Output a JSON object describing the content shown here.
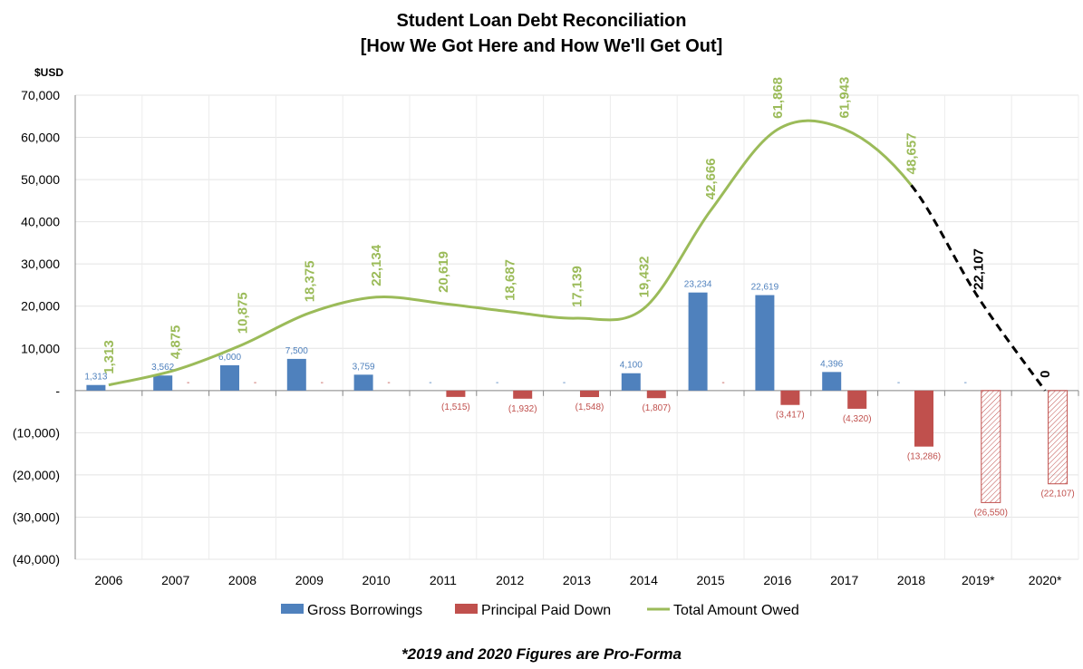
{
  "chart_data": {
    "type": "bar",
    "title": [
      "Student Loan Debt Reconciliation",
      "[How We Got Here and How We'll Get Out]"
    ],
    "ylabel": "$USD",
    "ylim": [
      -40000,
      70000
    ],
    "yticks": [
      70000,
      60000,
      50000,
      40000,
      30000,
      20000,
      10000,
      0,
      -10000,
      -20000,
      -30000,
      -40000
    ],
    "ytick_labels": [
      "70,000",
      "60,000",
      "50,000",
      "40,000",
      "30,000",
      "20,000",
      "10,000",
      "-",
      "(10,000)",
      "(20,000)",
      "(30,000)",
      "(40,000)"
    ],
    "categories": [
      "2006",
      "2007",
      "2008",
      "2009",
      "2010",
      "2011",
      "2012",
      "2013",
      "2014",
      "2015",
      "2016",
      "2017",
      "2018",
      "2019*",
      "2020*"
    ],
    "grid": true,
    "series": [
      {
        "name": "Gross Borrowings",
        "type": "bar",
        "color": "#4f81bd",
        "values": [
          1313,
          3562,
          6000,
          7500,
          3759,
          0,
          0,
          0,
          4100,
          23234,
          22619,
          4396,
          0,
          0,
          null
        ],
        "labels": [
          "1,313",
          "3,562",
          "6,000",
          "7,500",
          "3,759",
          "-",
          "-",
          "-",
          "4,100",
          "23,234",
          "22,619",
          "4,396",
          "-",
          "-",
          ""
        ]
      },
      {
        "name": "Principal Paid Down",
        "type": "bar",
        "color": "#c0504d",
        "values": [
          0,
          0,
          0,
          0,
          0,
          -1515,
          -1932,
          -1548,
          -1807,
          0,
          -3417,
          -4320,
          -13286,
          -26550,
          -22107
        ],
        "labels": [
          "-",
          "-",
          "-",
          "-",
          "-",
          "(1,515)",
          "(1,932)",
          "(1,548)",
          "(1,807)",
          "-",
          "(3,417)",
          "(4,320)",
          "(13,286)",
          "(26,550)",
          "(22,107)"
        ],
        "pro_forma_from_index": 13
      },
      {
        "name": "Total Amount Owed",
        "type": "line",
        "color": "#9bbb59",
        "values": [
          1313,
          4875,
          10875,
          18375,
          22134,
          20619,
          18687,
          17139,
          19432,
          42666,
          61868,
          61943,
          48657,
          22107,
          0
        ],
        "labels": [
          "1,313",
          "4,875",
          "10,875",
          "18,375",
          "22,134",
          "20,619",
          "18,687",
          "17,139",
          "19,432",
          "42,666",
          "61,868",
          "61,943",
          "48,657",
          "22,107",
          "0"
        ],
        "projected_color": "#000000",
        "pro_forma_from_index": 12
      }
    ],
    "legend": "bottom",
    "footnote": "*2019 and 2020 Figures are Pro-Forma"
  }
}
